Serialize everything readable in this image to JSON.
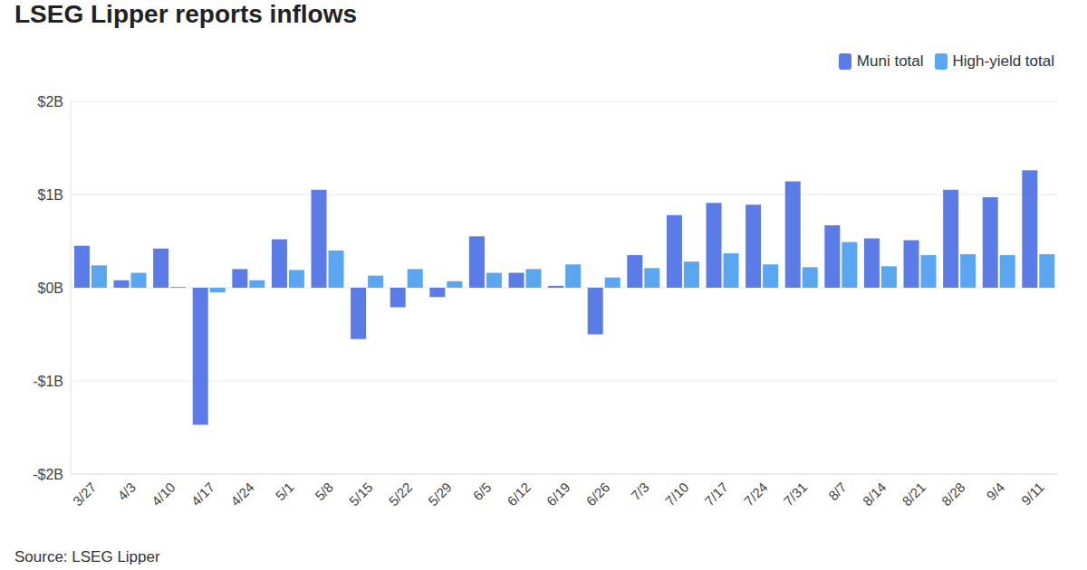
{
  "chart_data": {
    "type": "bar",
    "title": "LSEG Lipper reports inflows",
    "source": "Source: LSEG Lipper",
    "categories": [
      "3/27",
      "4/3",
      "4/10",
      "4/17",
      "4/24",
      "5/1",
      "5/8",
      "5/15",
      "5/22",
      "5/29",
      "6/5",
      "6/12",
      "6/19",
      "6/26",
      "7/3",
      "7/10",
      "7/17",
      "7/24",
      "7/31",
      "8/7",
      "8/14",
      "8/21",
      "8/28",
      "9/4",
      "9/11"
    ],
    "series": [
      {
        "name": "Muni total",
        "color": "#5b7be6",
        "values": [
          0.45,
          0.08,
          0.42,
          -1.47,
          0.2,
          0.52,
          1.05,
          -0.55,
          -0.21,
          -0.1,
          0.55,
          0.16,
          0.02,
          -0.5,
          0.35,
          0.78,
          0.91,
          0.89,
          1.14,
          0.67,
          0.53,
          0.51,
          1.05,
          0.97,
          1.26
        ]
      },
      {
        "name": "High-yield total",
        "color": "#5aa6f0",
        "values": [
          0.24,
          0.16,
          0.01,
          -0.05,
          0.08,
          0.19,
          0.4,
          0.13,
          0.2,
          0.07,
          0.16,
          0.2,
          0.25,
          0.11,
          0.21,
          0.28,
          0.37,
          0.25,
          0.22,
          0.49,
          0.23,
          0.35,
          0.36,
          0.35,
          0.36
        ]
      }
    ],
    "ylim": [
      -2,
      2
    ],
    "yticks": [
      {
        "value": -2,
        "label": "-$2B"
      },
      {
        "value": -1,
        "label": "-$1B"
      },
      {
        "value": 0,
        "label": "$0B"
      },
      {
        "value": 1,
        "label": "$1B"
      },
      {
        "value": 2,
        "label": "$2B"
      }
    ],
    "grid": true,
    "legend": "top-right"
  }
}
